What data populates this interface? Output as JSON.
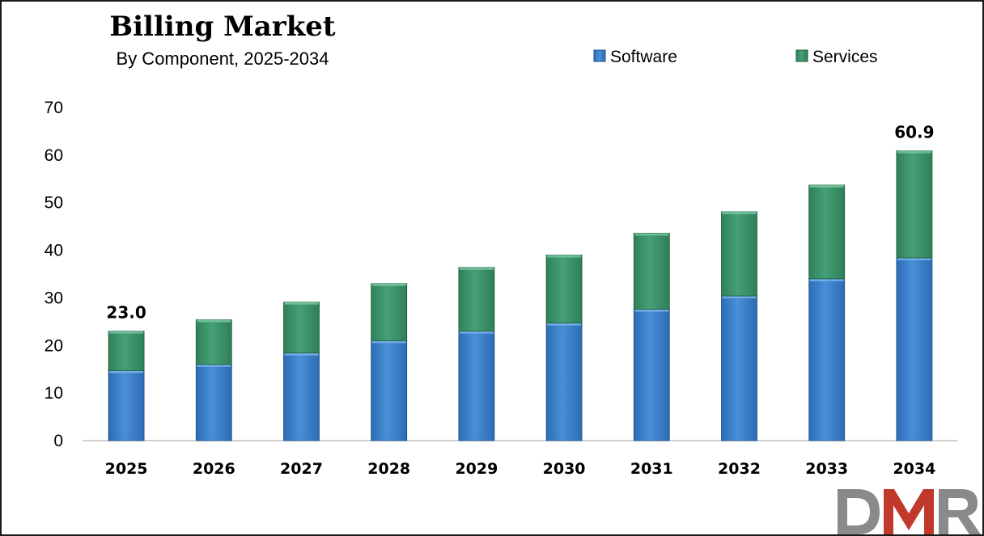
{
  "chart_data": {
    "type": "bar",
    "stacked": true,
    "title": "Billing Market",
    "subtitle": "By Component, 2025-2034",
    "categories": [
      "2025",
      "2026",
      "2027",
      "2028",
      "2029",
      "2030",
      "2031",
      "2032",
      "2033",
      "2034"
    ],
    "series": [
      {
        "name": "Software",
        "color": "#3b7dc8",
        "values": [
          14.7,
          16.0,
          18.4,
          21.0,
          23.0,
          24.7,
          27.6,
          30.4,
          34.0,
          38.4
        ]
      },
      {
        "name": "Services",
        "color": "#3a9168",
        "values": [
          8.3,
          9.4,
          10.7,
          12.0,
          13.4,
          14.3,
          16.0,
          17.7,
          19.7,
          22.5
        ]
      }
    ],
    "data_labels": [
      {
        "category": "2025",
        "text": "23.0"
      },
      {
        "category": "2034",
        "text": "60.9"
      }
    ],
    "ylim": [
      0,
      70
    ],
    "yticks": [
      "0",
      "10",
      "20",
      "30",
      "40",
      "50",
      "60",
      "70"
    ],
    "xlabel": "",
    "ylabel": "",
    "grid": false,
    "legend_position": "top-right"
  },
  "logo": {
    "text": "DMR",
    "colors": [
      "#8a8a8a",
      "#c0392b"
    ]
  }
}
